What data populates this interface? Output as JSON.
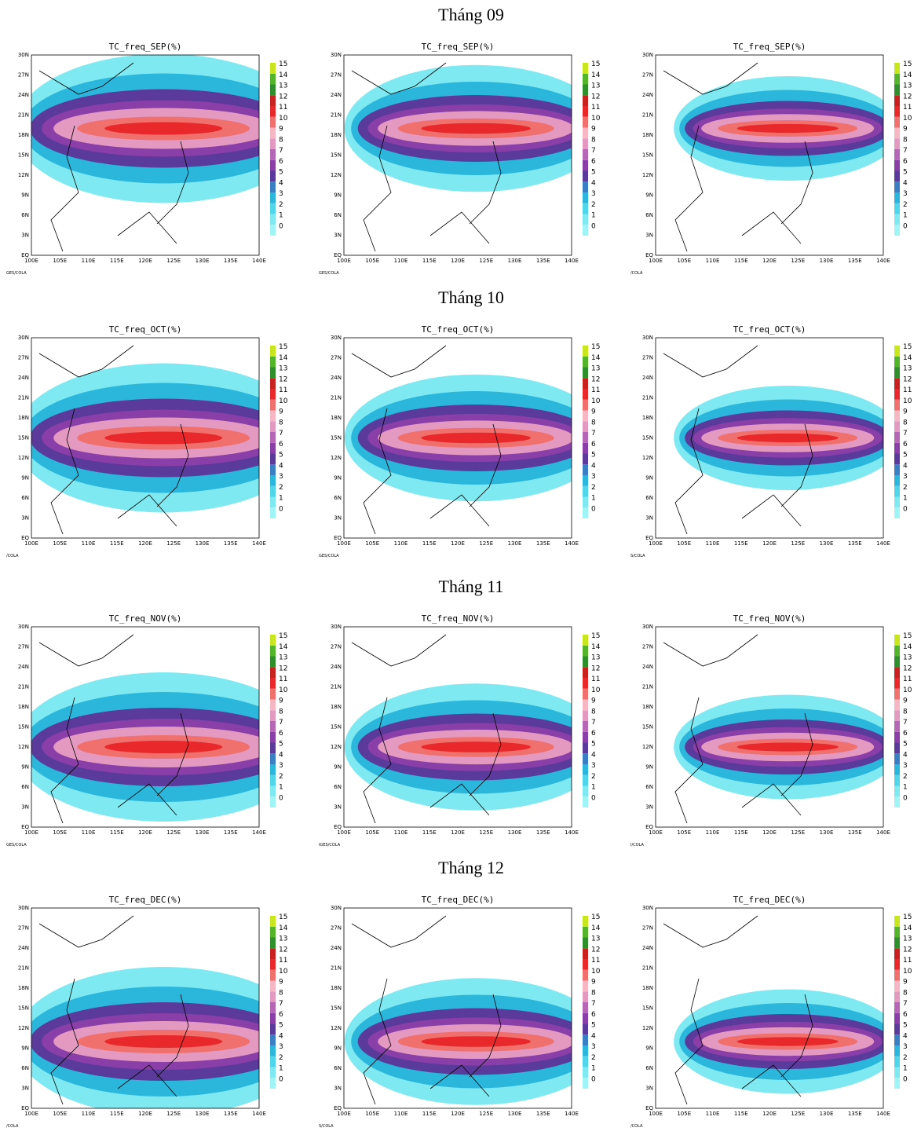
{
  "rows": [
    {
      "heading": "Tháng 09",
      "panels": [
        {
          "title": "TC_freq_SEP(%)",
          "footer": "GES/COLA"
        },
        {
          "title": "TC_freq_SEP(%)",
          "footer": "GES/COLA"
        },
        {
          "title": "TC_freq_SEP(%)",
          "footer": "/COLA"
        }
      ]
    },
    {
      "heading": "Tháng 10",
      "panels": [
        {
          "title": "TC_freq_OCT(%)",
          "footer": "/COLA"
        },
        {
          "title": "TC_freq_OCT(%)",
          "footer": "GES/COLA"
        },
        {
          "title": "TC_freq_OCT(%)",
          "footer": "S/COLA"
        }
      ]
    },
    {
      "heading": "Tháng 11",
      "panels": [
        {
          "title": "TC_freq_NOV(%)",
          "footer": "GES/COLA"
        },
        {
          "title": "TC_freq_NOV(%)",
          "footer": "IGES/COLA"
        },
        {
          "title": "TC_freq_NOV(%)",
          "footer": "I/COLA"
        }
      ]
    },
    {
      "heading": "Tháng 12",
      "panels": [
        {
          "title": "TC_freq_DEC(%)",
          "footer": "/COLA"
        },
        {
          "title": "TC_freq_DEC(%)",
          "footer": "S/COLA"
        },
        {
          "title": "TC_freq_DEC(%)",
          "footer": "/COLA"
        }
      ]
    }
  ],
  "lat_labels": [
    "30N",
    "27N",
    "24N",
    "21N",
    "18N",
    "15N",
    "12N",
    "9N",
    "6N",
    "3N",
    "EQ"
  ],
  "lon_labels": [
    "100E",
    "105E",
    "110E",
    "115E",
    "120E",
    "125E",
    "130E",
    "135E",
    "140E"
  ],
  "colorbar": {
    "labels": [
      "0",
      "1",
      "2",
      "3",
      "4",
      "5",
      "6",
      "7",
      "8",
      "9",
      "10",
      "11",
      "12",
      "13",
      "14",
      "15"
    ],
    "colors": [
      "#9ff5f5",
      "#7ee9f0",
      "#4fd6ea",
      "#2bb6dc",
      "#3a7fc4",
      "#5a3a9a",
      "#8a3ea8",
      "#b567b5",
      "#e49ac0",
      "#f7b6c4",
      "#f0706e",
      "#e8282a",
      "#c92020",
      "#2f8f2a",
      "#55b52a",
      "#c8e61e"
    ]
  }
}
